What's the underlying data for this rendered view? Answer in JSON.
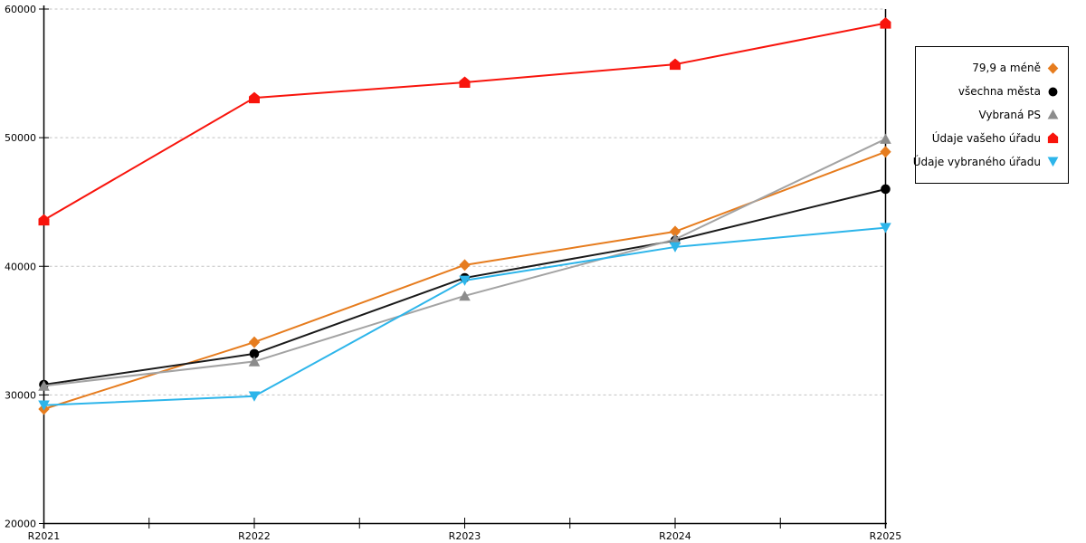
{
  "chart_data": {
    "type": "line",
    "title": "",
    "xlabel": "",
    "ylabel": "",
    "categories": [
      "R2021",
      "R2022",
      "R2023",
      "R2024",
      "R2025"
    ],
    "series": [
      {
        "name": "79,9 a méně",
        "color": "#E67C1E",
        "marker_color": "#E67C1E",
        "marker": "diamond",
        "values": [
          28900,
          34100,
          40100,
          42700,
          48900
        ]
      },
      {
        "name": "všechna města",
        "color": "#1A1A1A",
        "marker_color": "#000000",
        "marker": "circle",
        "values": [
          30800,
          33200,
          39100,
          42000,
          46000
        ]
      },
      {
        "name": "Vybraná PS",
        "color": "#A3A3A3",
        "marker_color": "#8C8C8C",
        "marker": "triangle-up",
        "values": [
          30700,
          32600,
          37700,
          42100,
          49900
        ]
      },
      {
        "name": "Údaje vašeho úřadu",
        "color": "#F8140C",
        "marker_color": "#F8140C",
        "marker": "house",
        "values": [
          43600,
          53100,
          54300,
          55700,
          58900
        ]
      },
      {
        "name": "Údaje vybraného úřadu",
        "color": "#2DB5EA",
        "marker_color": "#2DB5EA",
        "marker": "triangle-down",
        "values": [
          29200,
          29900,
          38900,
          41500,
          43000
        ]
      }
    ],
    "ylim": [
      20000,
      60000
    ],
    "y_tick_step": 10000,
    "y_tick_labels": [
      "20000",
      "30000",
      "40000",
      "50000",
      "60000"
    ],
    "x_tick_labels": [
      "R2021",
      "R2022",
      "R2023",
      "R2024",
      "R2025"
    ],
    "grid": "horizontal-dashed",
    "grid_color": "#C2C2C2",
    "axis_color": "#000000",
    "background": "#FFFFFF",
    "legend_position": "right"
  }
}
